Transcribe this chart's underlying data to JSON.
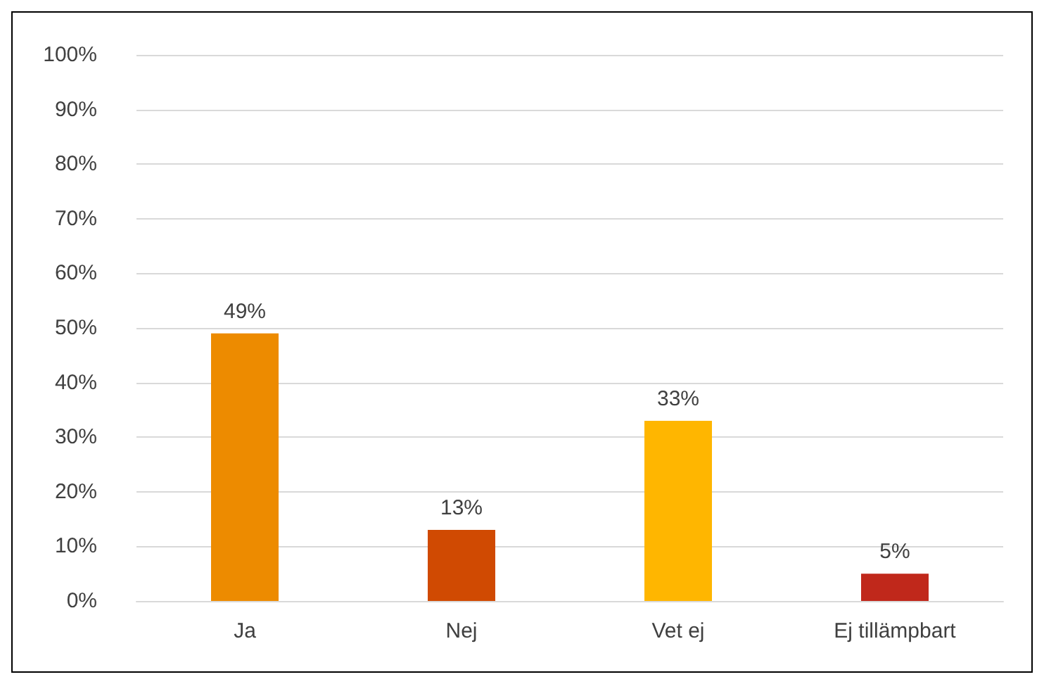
{
  "chart_data": {
    "type": "bar",
    "categories": [
      "Ja",
      "Nej",
      "Vet ej",
      "Ej tillämpbart"
    ],
    "values": [
      49,
      13,
      33,
      5
    ],
    "colors": [
      "#ed8b00",
      "#d04a02",
      "#ffb600",
      "#c0281b"
    ],
    "value_labels": [
      "49%",
      "13%",
      "33%",
      "5%"
    ],
    "ylim": [
      0,
      100
    ],
    "yticks": [
      {
        "value": 0,
        "label": "0%"
      },
      {
        "value": 10,
        "label": "10%"
      },
      {
        "value": 20,
        "label": "20%"
      },
      {
        "value": 30,
        "label": "30%"
      },
      {
        "value": 40,
        "label": "40%"
      },
      {
        "value": 50,
        "label": "50%"
      },
      {
        "value": 60,
        "label": "60%"
      },
      {
        "value": 70,
        "label": "70%"
      },
      {
        "value": 80,
        "label": "80%"
      },
      {
        "value": 90,
        "label": "90%"
      },
      {
        "value": 100,
        "label": "100%"
      }
    ],
    "grid": true
  }
}
